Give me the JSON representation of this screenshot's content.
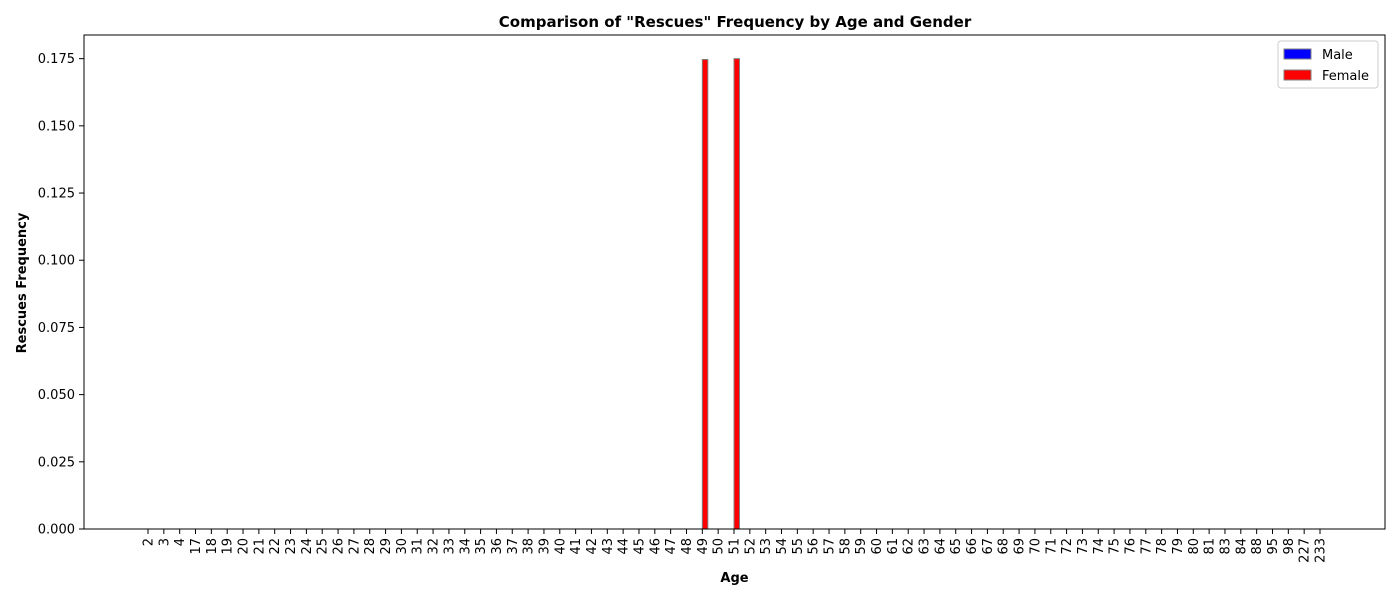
{
  "chart_data": {
    "type": "bar",
    "title": "Comparison of \"Rescues\" Frequency by Age and Gender",
    "xlabel": "Age",
    "ylabel": "Rescues Frequency",
    "ylim": [
      0,
      0.1838
    ],
    "yticks": [
      "0.000",
      "0.025",
      "0.050",
      "0.075",
      "0.100",
      "0.125",
      "0.150",
      "0.175"
    ],
    "grid": false,
    "legend_position": "top-right",
    "categories": [
      "2",
      "3",
      "4",
      "17",
      "18",
      "19",
      "20",
      "21",
      "22",
      "23",
      "24",
      "25",
      "26",
      "27",
      "28",
      "29",
      "30",
      "31",
      "32",
      "33",
      "34",
      "35",
      "36",
      "37",
      "38",
      "39",
      "40",
      "41",
      "42",
      "43",
      "44",
      "45",
      "46",
      "47",
      "48",
      "49",
      "50",
      "51",
      "52",
      "53",
      "54",
      "55",
      "56",
      "57",
      "58",
      "59",
      "60",
      "61",
      "62",
      "63",
      "64",
      "65",
      "66",
      "67",
      "68",
      "69",
      "70",
      "71",
      "72",
      "73",
      "74",
      "75",
      "76",
      "77",
      "78",
      "79",
      "80",
      "81",
      "83",
      "84",
      "88",
      "95",
      "98",
      "227",
      "233"
    ],
    "series": [
      {
        "name": "Male",
        "color": "#0000ff",
        "values": [
          0,
          0,
          0,
          0,
          0,
          0,
          0,
          0,
          0,
          0,
          0,
          0,
          0,
          0,
          0,
          0,
          0,
          0,
          0,
          0,
          0,
          0,
          0,
          0,
          0,
          0,
          0,
          0,
          0,
          0,
          0,
          0,
          0,
          0,
          0,
          0,
          0,
          0,
          0,
          0,
          0,
          0,
          0,
          0,
          0,
          0,
          0,
          0,
          0,
          0,
          0,
          0,
          0,
          0,
          0,
          0,
          0,
          0,
          0,
          0,
          0,
          0,
          0,
          0,
          0,
          0,
          0,
          0,
          0,
          0,
          0,
          0,
          0,
          0,
          0
        ]
      },
      {
        "name": "Female",
        "color": "#ff0000",
        "values": [
          0,
          0,
          0,
          0,
          0,
          0,
          0,
          0,
          0,
          0,
          0,
          0,
          0,
          0,
          0,
          0,
          0,
          0,
          0,
          0,
          0,
          0,
          0,
          0,
          0,
          0,
          0,
          0,
          0,
          0,
          0,
          0,
          0,
          0,
          0,
          0.1747,
          0,
          0.175,
          0,
          0,
          0,
          0,
          0,
          0,
          0,
          0,
          0,
          0,
          0,
          0,
          0,
          0,
          0,
          0,
          0,
          0,
          0,
          0,
          0,
          0,
          0,
          0,
          0,
          0,
          0,
          0,
          0,
          0,
          0,
          0,
          0,
          0,
          0,
          0,
          0
        ]
      }
    ]
  }
}
